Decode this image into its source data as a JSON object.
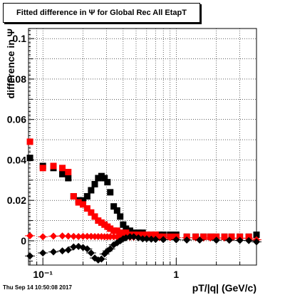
{
  "chart_data": {
    "type": "scatter",
    "title": "Fitted difference in Ψ  for Global Rec All EtapT",
    "xlabel": "pT/|q| (GeV/c)",
    "ylabel": "difference in Ψ",
    "xscale": "log",
    "xlim": [
      0.078,
      4.0
    ],
    "ylim": [
      -0.012,
      0.105
    ],
    "grid": true,
    "xticks": [
      {
        "v": 0.1,
        "label": "10⁻¹"
      },
      {
        "v": 1,
        "label": "1"
      }
    ],
    "yticks": [
      {
        "v": 0,
        "label": "0"
      },
      {
        "v": 0.02,
        "label": "0.02"
      },
      {
        "v": 0.04,
        "label": "0.04"
      },
      {
        "v": 0.06,
        "label": "0.06"
      },
      {
        "v": 0.08,
        "label": "0.08"
      },
      {
        "v": 0.1,
        "label": "0.1"
      }
    ],
    "timestamp": "Thu Sep 14 10:50:08 2017",
    "series": [
      {
        "marker": "square",
        "color": "#000000",
        "x": [
          0.08,
          0.1,
          0.12,
          0.14,
          0.155,
          0.17,
          0.185,
          0.2,
          0.215,
          0.23,
          0.245,
          0.26,
          0.275,
          0.29,
          0.305,
          0.32,
          0.34,
          0.36,
          0.38,
          0.4,
          0.42,
          0.45,
          0.48,
          0.52,
          0.56,
          0.6,
          0.65,
          0.7,
          0.75,
          0.8,
          0.9,
          1.0,
          1.2,
          1.4,
          1.6,
          1.8,
          2.0,
          2.3,
          2.6,
          3.0,
          3.5,
          4.0
        ],
        "y": [
          0.041,
          0.037,
          0.036,
          0.033,
          0.031,
          0.022,
          0.02,
          0.02,
          0.022,
          0.025,
          0.028,
          0.031,
          0.032,
          0.031,
          0.029,
          0.024,
          0.017,
          0.015,
          0.012,
          0.008,
          0.006,
          0.005,
          0.004,
          0.004,
          0.004,
          0.003,
          0.003,
          0.003,
          0.003,
          0.003,
          0.003,
          0.003,
          0.002,
          0.002,
          0.002,
          0.002,
          0.002,
          0.002,
          0.002,
          0.002,
          0.002,
          0.003
        ]
      },
      {
        "marker": "square",
        "color": "#ff0000",
        "x": [
          0.08,
          0.1,
          0.12,
          0.14,
          0.155,
          0.17,
          0.185,
          0.2,
          0.215,
          0.23,
          0.245,
          0.26,
          0.275,
          0.29,
          0.305,
          0.32,
          0.34,
          0.36,
          0.38,
          0.4,
          0.42,
          0.45,
          0.48,
          0.52,
          0.56,
          0.6,
          0.65,
          0.7,
          0.75,
          0.8,
          0.9,
          1.0,
          1.2,
          1.4,
          1.6,
          1.8,
          2.0,
          2.3,
          2.6,
          3.0,
          3.5
        ],
        "y": [
          0.049,
          0.036,
          0.037,
          0.036,
          0.034,
          0.022,
          0.019,
          0.018,
          0.016,
          0.014,
          0.012,
          0.01,
          0.009,
          0.008,
          0.007,
          0.006,
          0.005,
          0.005,
          0.004,
          0.004,
          0.004,
          0.003,
          0.003,
          0.003,
          0.003,
          0.003,
          0.003,
          0.003,
          0.002,
          0.002,
          0.002,
          0.002,
          0.002,
          0.002,
          0.002,
          0.002,
          0.002,
          0.002,
          0.002,
          0.002,
          0.002
        ]
      },
      {
        "marker": "diamond",
        "color": "#ff0000",
        "x": [
          0.08,
          0.1,
          0.12,
          0.14,
          0.155,
          0.17,
          0.185,
          0.2,
          0.215,
          0.23,
          0.245,
          0.26,
          0.275,
          0.29,
          0.305,
          0.32,
          0.34,
          0.36,
          0.38,
          0.4,
          0.42,
          0.45,
          0.48,
          0.52,
          0.56,
          0.6,
          0.65,
          0.7,
          0.75,
          0.8,
          0.9,
          1.0,
          1.2,
          1.4,
          1.6,
          1.8,
          2.0,
          2.3,
          2.6,
          3.0,
          3.5,
          4.0
        ],
        "y": [
          0.0025,
          0.002,
          0.0023,
          0.0024,
          0.0023,
          0.0022,
          0.0021,
          0.0022,
          0.0022,
          0.0022,
          0.0021,
          0.0021,
          0.0021,
          0.002,
          0.002,
          0.002,
          0.002,
          0.0019,
          0.0019,
          0.0019,
          0.0018,
          0.0018,
          0.0018,
          0.0017,
          0.0017,
          0.0017,
          0.0017,
          0.0016,
          0.0016,
          0.0016,
          0.0016,
          0.0015,
          0.0015,
          0.0015,
          0.0014,
          0.0014,
          0.0014,
          0.0014,
          0.0013,
          0.0013,
          0.0013,
          0.0005
        ]
      },
      {
        "marker": "diamond",
        "color": "#000000",
        "x": [
          0.08,
          0.1,
          0.12,
          0.14,
          0.155,
          0.17,
          0.185,
          0.2,
          0.215,
          0.23,
          0.245,
          0.26,
          0.275,
          0.29,
          0.305,
          0.32,
          0.34,
          0.36,
          0.38,
          0.4,
          0.42,
          0.45,
          0.48,
          0.52,
          0.56,
          0.6,
          0.65,
          0.7,
          0.8,
          1.0,
          1.2,
          1.5,
          2.0,
          2.5,
          3.0,
          3.5,
          4.0
        ],
        "y": [
          -0.0075,
          -0.006,
          -0.0055,
          -0.005,
          -0.0045,
          -0.003,
          -0.0028,
          -0.0033,
          -0.004,
          -0.006,
          -0.0085,
          -0.0095,
          -0.009,
          -0.0065,
          -0.005,
          -0.004,
          -0.002,
          -0.001,
          0.0,
          0.001,
          0.0015,
          0.002,
          0.002,
          0.0015,
          0.001,
          0.001,
          0.0008,
          0.0007,
          0.0006,
          0.0005,
          0.0004,
          0.0004,
          0.0003,
          0.0003,
          0.0002,
          0.0001,
          -0.0005
        ]
      }
    ]
  }
}
